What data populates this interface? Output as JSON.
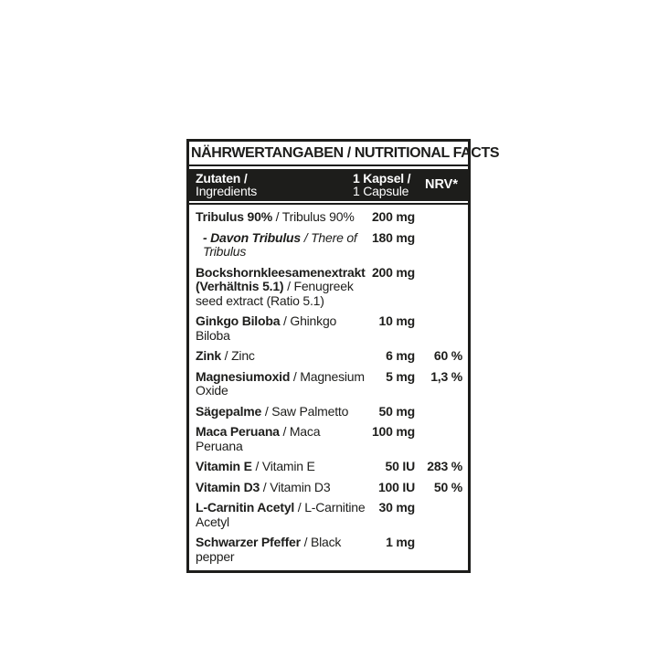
{
  "colors": {
    "ink": "#1d1d1b",
    "bar_background": "#1d1d1b",
    "bar_text": "#ffffff",
    "page_background": "#ffffff"
  },
  "table": {
    "title": "NÄHRWERTANGABEN / NUTRITIONAL FACTS",
    "sep": " / ",
    "header": {
      "ingredients_de": "Zutaten /",
      "ingredients_en": "Ingredients",
      "serving_de": "1 Kapsel /",
      "serving_en": "1 Capsule",
      "nrv": "NRV*"
    },
    "rows": [
      {
        "de": "Tribulus 90%",
        "en": "Tribulus 90%",
        "amount": "200 mg",
        "nrv": "",
        "sub": false
      },
      {
        "de": "- Davon Tribulus",
        "en": "There of Tribulus",
        "amount": "180 mg",
        "nrv": "",
        "sub": true
      },
      {
        "de": "Bockshornkleesamenextrakt (Verhältnis 5.1)",
        "en": "Fenugreek seed extract (Ratio 5.1)",
        "amount": "200 mg",
        "nrv": "",
        "sub": false
      },
      {
        "de": "Ginkgo Biloba",
        "en": "Ghinkgo Biloba",
        "amount": "10 mg",
        "nrv": "",
        "sub": false
      },
      {
        "de": "Zink",
        "en": "Zinc",
        "amount": "6 mg",
        "nrv": "60 %",
        "sub": false
      },
      {
        "de": "Magnesiumoxid",
        "en": "Magnesium Oxide",
        "amount": "5 mg",
        "nrv": "1,3 %",
        "sub": false
      },
      {
        "de": "Sägepalme",
        "en": "Saw Palmetto",
        "amount": "50 mg",
        "nrv": "",
        "sub": false
      },
      {
        "de": "Maca Peruana",
        "en": "Maca Peruana",
        "amount": "100 mg",
        "nrv": "",
        "sub": false
      },
      {
        "de": "Vitamin E",
        "en": "Vitamin E",
        "amount": "50 IU",
        "nrv": "283 %",
        "sub": false
      },
      {
        "de": "Vitamin D3",
        "en": "Vitamin D3",
        "amount": "100 IU",
        "nrv": "50 %",
        "sub": false
      },
      {
        "de": "L-Carnitin Acetyl",
        "en": "L-Carnitine Acetyl",
        "amount": "30 mg",
        "nrv": "",
        "sub": false
      },
      {
        "de": "Schwarzer Pfeffer",
        "en": "Black pepper",
        "amount": "1 mg",
        "nrv": "",
        "sub": false
      }
    ]
  }
}
